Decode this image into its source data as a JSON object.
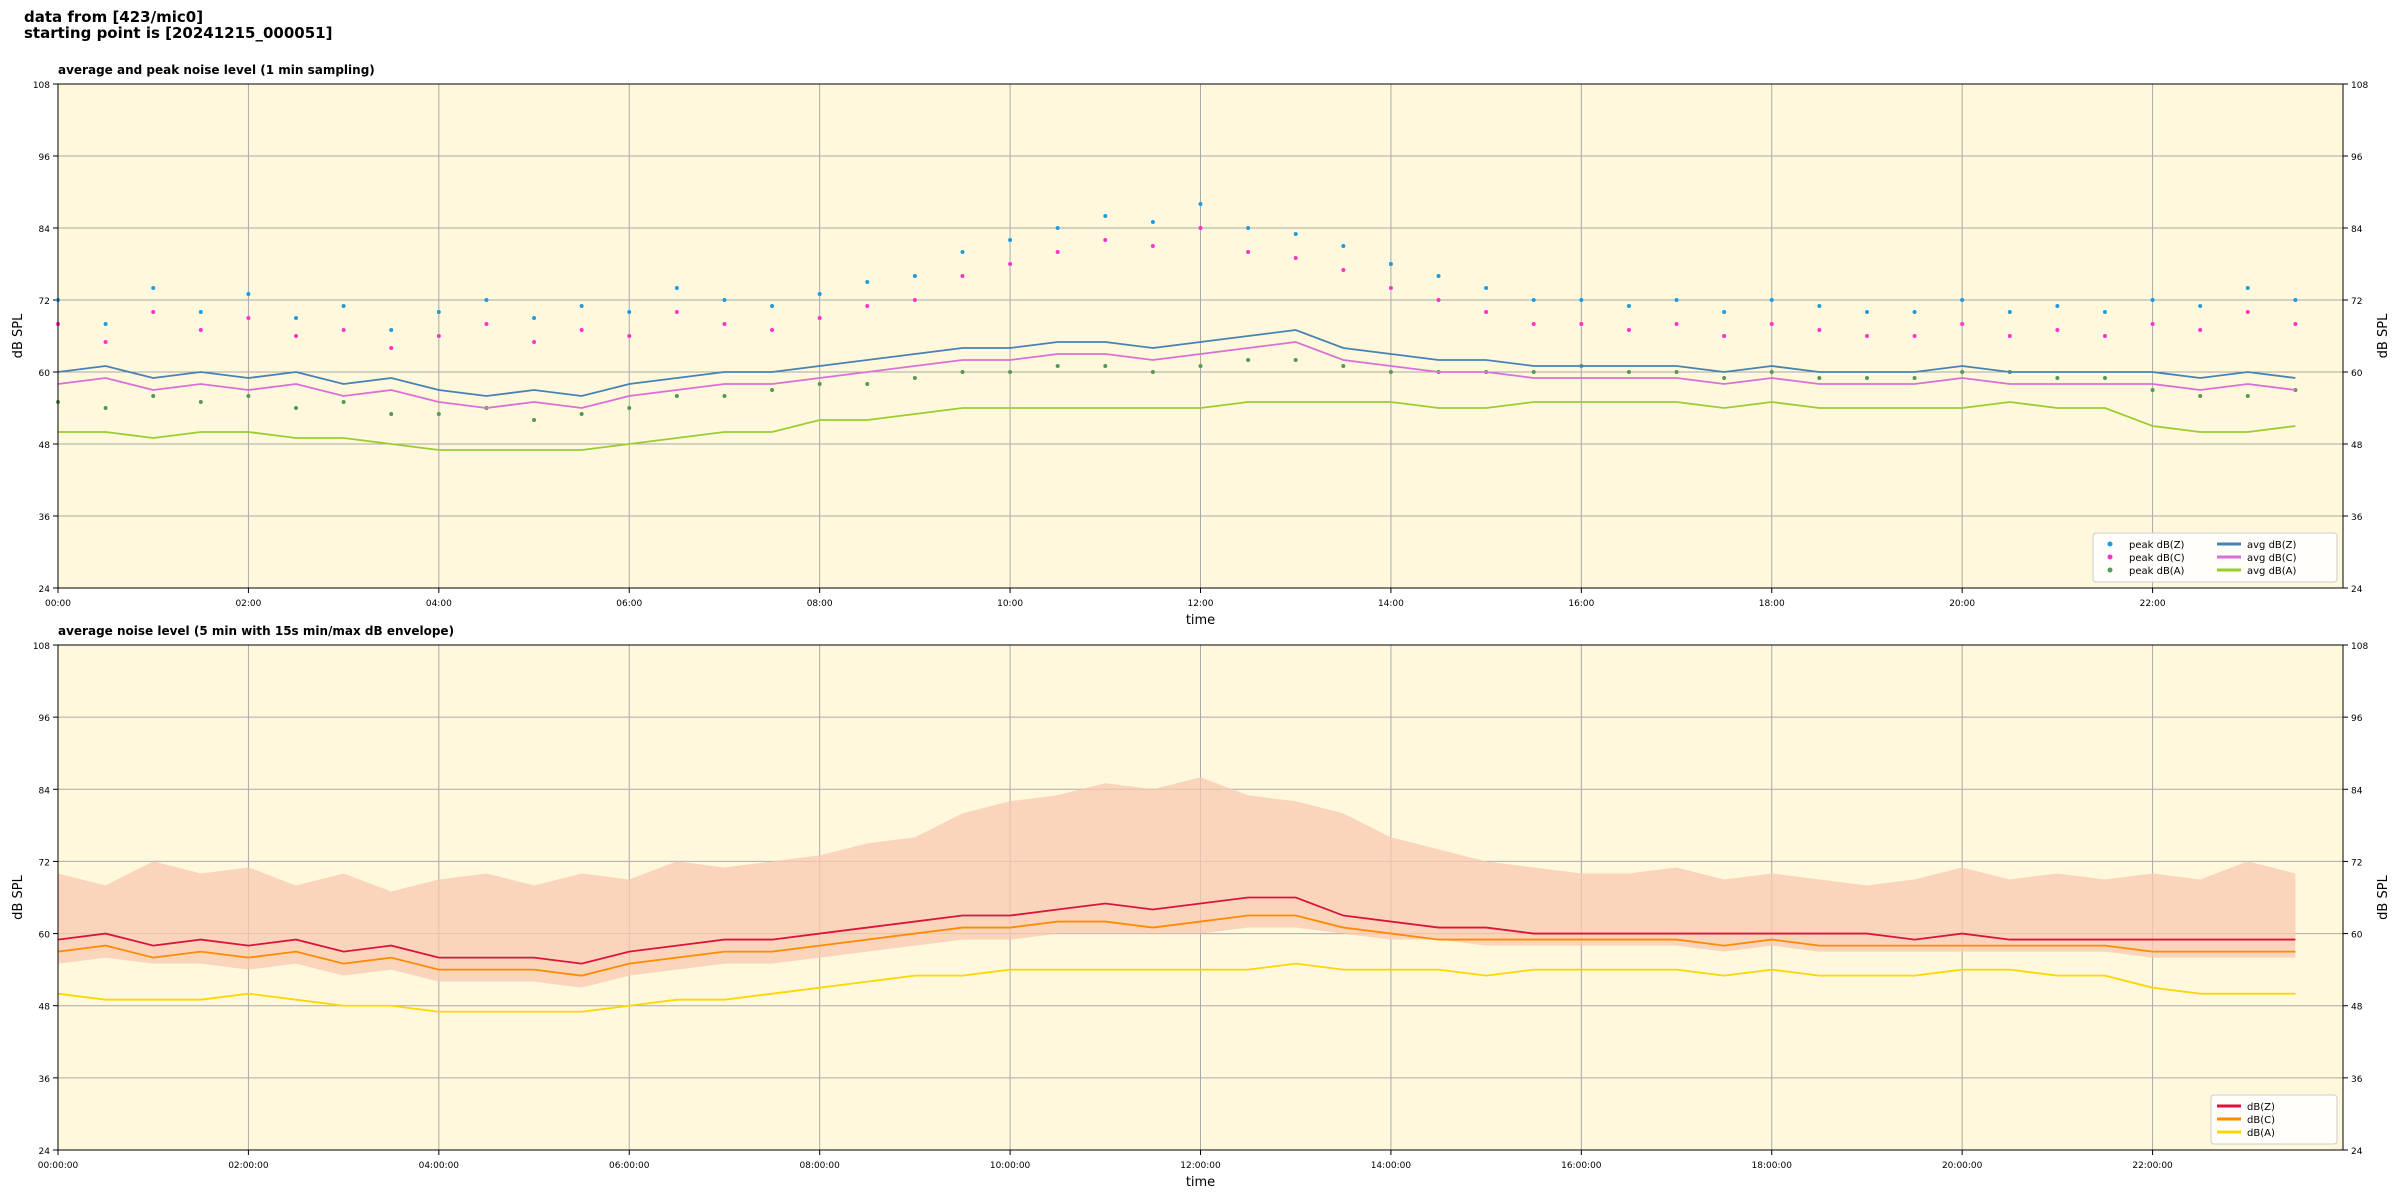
{
  "header": {
    "lines": [
      "data from [423/mic0]",
      "starting point is [20241215_000051]"
    ]
  },
  "chart_data": [
    {
      "type": "line",
      "title": "average and peak noise level (1 min sampling)",
      "x_label": "time",
      "y_label": "dB SPL",
      "background": "#fff8dc",
      "grid": true,
      "legend": "lower right",
      "xlim": [
        0,
        24
      ],
      "ylim": [
        24,
        108
      ],
      "xticks": [
        {
          "value": 0,
          "label": "00:00"
        },
        {
          "value": 2,
          "label": "02:00"
        },
        {
          "value": 4,
          "label": "04:00"
        },
        {
          "value": 6,
          "label": "06:00"
        },
        {
          "value": 8,
          "label": "08:00"
        },
        {
          "value": 10,
          "label": "10:00"
        },
        {
          "value": 12,
          "label": "12:00"
        },
        {
          "value": 14,
          "label": "14:00"
        },
        {
          "value": 16,
          "label": "16:00"
        },
        {
          "value": 18,
          "label": "18:00"
        },
        {
          "value": 20,
          "label": "20:00"
        },
        {
          "value": 22,
          "label": "22:00"
        }
      ],
      "yticks": [
        24,
        36,
        48,
        60,
        72,
        84,
        96,
        108
      ],
      "x": [
        0,
        0.5,
        1,
        1.5,
        2,
        2.5,
        3,
        3.5,
        4,
        4.5,
        5,
        5.5,
        6,
        6.5,
        7,
        7.5,
        8,
        8.5,
        9,
        9.5,
        10,
        10.5,
        11,
        11.5,
        12,
        12.5,
        13,
        13.5,
        14,
        14.5,
        15,
        15.5,
        16,
        16.5,
        17,
        17.5,
        18,
        18.5,
        19,
        19.5,
        20,
        20.5,
        21,
        21.5,
        22,
        22.5,
        23,
        23.5
      ],
      "series": [
        {
          "name": "peak dB(Z)",
          "style": "scatter",
          "color": "#1f9bde",
          "values": [
            72,
            68,
            74,
            70,
            73,
            69,
            71,
            67,
            70,
            72,
            69,
            71,
            70,
            74,
            72,
            71,
            73,
            75,
            76,
            80,
            82,
            84,
            86,
            85,
            88,
            84,
            83,
            81,
            78,
            76,
            74,
            72,
            72,
            71,
            72,
            70,
            72,
            71,
            70,
            70,
            72,
            70,
            71,
            70,
            72,
            71,
            74,
            72
          ]
        },
        {
          "name": "peak dB(C)",
          "style": "scatter",
          "color": "#ff33cc",
          "values": [
            68,
            65,
            70,
            67,
            69,
            66,
            67,
            64,
            66,
            68,
            65,
            67,
            66,
            70,
            68,
            67,
            69,
            71,
            72,
            76,
            78,
            80,
            82,
            81,
            84,
            80,
            79,
            77,
            74,
            72,
            70,
            68,
            68,
            67,
            68,
            66,
            68,
            67,
            66,
            66,
            68,
            66,
            67,
            66,
            68,
            67,
            70,
            68
          ]
        },
        {
          "name": "peak dB(A)",
          "style": "scatter",
          "color": "#559955",
          "values": [
            55,
            54,
            56,
            55,
            56,
            54,
            55,
            53,
            53,
            54,
            52,
            53,
            54,
            56,
            56,
            57,
            58,
            58,
            59,
            60,
            60,
            61,
            61,
            60,
            61,
            62,
            62,
            61,
            60,
            60,
            60,
            60,
            61,
            60,
            60,
            59,
            60,
            59,
            59,
            59,
            60,
            60,
            59,
            59,
            57,
            56,
            56,
            57
          ]
        },
        {
          "name": "avg dB(Z)",
          "style": "line",
          "color": "#4682b4",
          "values": [
            60,
            61,
            59,
            60,
            59,
            60,
            58,
            59,
            57,
            56,
            57,
            56,
            58,
            59,
            60,
            60,
            61,
            62,
            63,
            64,
            64,
            65,
            65,
            64,
            65,
            66,
            67,
            64,
            63,
            62,
            62,
            61,
            61,
            61,
            61,
            60,
            61,
            60,
            60,
            60,
            61,
            60,
            60,
            60,
            60,
            59,
            60,
            59
          ]
        },
        {
          "name": "avg dB(C)",
          "style": "line",
          "color": "#da70d6",
          "values": [
            58,
            59,
            57,
            58,
            57,
            58,
            56,
            57,
            55,
            54,
            55,
            54,
            56,
            57,
            58,
            58,
            59,
            60,
            61,
            62,
            62,
            63,
            63,
            62,
            63,
            64,
            65,
            62,
            61,
            60,
            60,
            59,
            59,
            59,
            59,
            58,
            59,
            58,
            58,
            58,
            59,
            58,
            58,
            58,
            58,
            57,
            58,
            57
          ]
        },
        {
          "name": "avg dB(A)",
          "style": "line",
          "color": "#9acd32",
          "values": [
            50,
            50,
            49,
            50,
            50,
            49,
            49,
            48,
            47,
            47,
            47,
            47,
            48,
            49,
            50,
            50,
            52,
            52,
            53,
            54,
            54,
            54,
            54,
            54,
            54,
            55,
            55,
            55,
            55,
            54,
            54,
            55,
            55,
            55,
            55,
            54,
            55,
            54,
            54,
            54,
            54,
            55,
            54,
            54,
            51,
            50,
            50,
            51
          ]
        }
      ]
    },
    {
      "type": "line",
      "title": "average noise level (5 min with 15s min/max dB envelope)",
      "x_label": "time",
      "y_label": "dB SPL",
      "background": "#fff8dc",
      "grid": true,
      "legend": "lower right",
      "xlim": [
        0,
        24
      ],
      "ylim": [
        24,
        108
      ],
      "xticks": [
        {
          "value": 0,
          "label": "00:00:00"
        },
        {
          "value": 2,
          "label": "02:00:00"
        },
        {
          "value": 4,
          "label": "04:00:00"
        },
        {
          "value": 6,
          "label": "06:00:00"
        },
        {
          "value": 8,
          "label": "08:00:00"
        },
        {
          "value": 10,
          "label": "10:00:00"
        },
        {
          "value": 12,
          "label": "12:00:00"
        },
        {
          "value": 14,
          "label": "14:00:00"
        },
        {
          "value": 16,
          "label": "16:00:00"
        },
        {
          "value": 18,
          "label": "18:00:00"
        },
        {
          "value": 20,
          "label": "20:00:00"
        },
        {
          "value": 22,
          "label": "22:00:00"
        }
      ],
      "yticks": [
        24,
        36,
        48,
        60,
        72,
        84,
        96,
        108
      ],
      "x": [
        0,
        0.5,
        1,
        1.5,
        2,
        2.5,
        3,
        3.5,
        4,
        4.5,
        5,
        5.5,
        6,
        6.5,
        7,
        7.5,
        8,
        8.5,
        9,
        9.5,
        10,
        10.5,
        11,
        11.5,
        12,
        12.5,
        13,
        13.5,
        14,
        14.5,
        15,
        15.5,
        16,
        16.5,
        17,
        17.5,
        18,
        18.5,
        19,
        19.5,
        20,
        20.5,
        21,
        21.5,
        22,
        22.5,
        23,
        23.5
      ],
      "envelope": {
        "color": "#f8c8b0",
        "max": [
          70,
          68,
          72,
          70,
          71,
          68,
          70,
          67,
          69,
          70,
          68,
          70,
          69,
          72,
          71,
          72,
          73,
          75,
          76,
          80,
          82,
          83,
          85,
          84,
          86,
          83,
          82,
          80,
          76,
          74,
          72,
          71,
          70,
          70,
          71,
          69,
          70,
          69,
          68,
          69,
          71,
          69,
          70,
          69,
          70,
          69,
          72,
          70
        ],
        "min": [
          55,
          56,
          55,
          55,
          54,
          55,
          53,
          54,
          52,
          52,
          52,
          51,
          53,
          54,
          55,
          55,
          56,
          57,
          58,
          59,
          59,
          60,
          60,
          60,
          60,
          61,
          61,
          60,
          59,
          59,
          58,
          58,
          58,
          58,
          58,
          57,
          58,
          57,
          57,
          57,
          57,
          57,
          57,
          57,
          56,
          56,
          56,
          56
        ]
      },
      "series": [
        {
          "name": "dB(Z)",
          "style": "line",
          "color": "#dc143c",
          "values": [
            59,
            60,
            58,
            59,
            58,
            59,
            57,
            58,
            56,
            56,
            56,
            55,
            57,
            58,
            59,
            59,
            60,
            61,
            62,
            63,
            63,
            64,
            65,
            64,
            65,
            66,
            66,
            63,
            62,
            61,
            61,
            60,
            60,
            60,
            60,
            60,
            60,
            60,
            60,
            59,
            60,
            59,
            59,
            59,
            59,
            59,
            59,
            59
          ]
        },
        {
          "name": "dB(C)",
          "style": "line",
          "color": "#ff8c00",
          "values": [
            57,
            58,
            56,
            57,
            56,
            57,
            55,
            56,
            54,
            54,
            54,
            53,
            55,
            56,
            57,
            57,
            58,
            59,
            60,
            61,
            61,
            62,
            62,
            61,
            62,
            63,
            63,
            61,
            60,
            59,
            59,
            59,
            59,
            59,
            59,
            58,
            59,
            58,
            58,
            58,
            58,
            58,
            58,
            58,
            57,
            57,
            57,
            57
          ]
        },
        {
          "name": "dB(A)",
          "style": "line",
          "color": "#ffd700",
          "values": [
            50,
            49,
            49,
            49,
            50,
            49,
            48,
            48,
            47,
            47,
            47,
            47,
            48,
            49,
            49,
            50,
            51,
            52,
            53,
            53,
            54,
            54,
            54,
            54,
            54,
            54,
            55,
            54,
            54,
            54,
            53,
            54,
            54,
            54,
            54,
            53,
            54,
            53,
            53,
            53,
            54,
            54,
            53,
            53,
            51,
            50,
            50,
            50
          ]
        }
      ]
    }
  ]
}
